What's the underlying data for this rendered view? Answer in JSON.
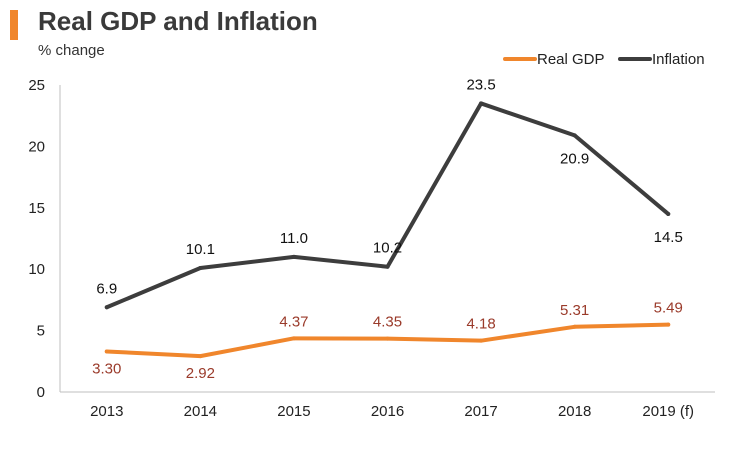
{
  "title": "Real GDP and Inflation",
  "subtitle": "% change",
  "colors": {
    "accent": "#f0862c",
    "inflation": "#3d3d3d",
    "gdp_label": "#9a3a2a"
  },
  "chart_data": {
    "type": "line",
    "categories": [
      "2013",
      "2014",
      "2015",
      "2016",
      "2017",
      "2018",
      "2019 (f)"
    ],
    "ylim": [
      0,
      25
    ],
    "yticks": [
      0,
      5,
      10,
      15,
      20,
      25
    ],
    "grid": false,
    "legend": "top-right",
    "series": [
      {
        "name": "Real GDP",
        "values": [
          3.3,
          2.92,
          4.37,
          4.35,
          4.18,
          5.31,
          5.49
        ],
        "labels": [
          "3.30",
          "2.92",
          "4.37",
          "4.35",
          "4.18",
          "5.31",
          "5.49"
        ],
        "color": "#f0862c",
        "label_color": "#9a3a2a"
      },
      {
        "name": "Inflation",
        "values": [
          6.9,
          10.1,
          11.0,
          10.2,
          23.5,
          20.9,
          14.5
        ],
        "labels": [
          "6.9",
          "10.1",
          "11.0",
          "10.2",
          "23.5",
          "20.9",
          "14.5"
        ],
        "color": "#3d3d3d",
        "label_color": "#111111"
      }
    ]
  }
}
